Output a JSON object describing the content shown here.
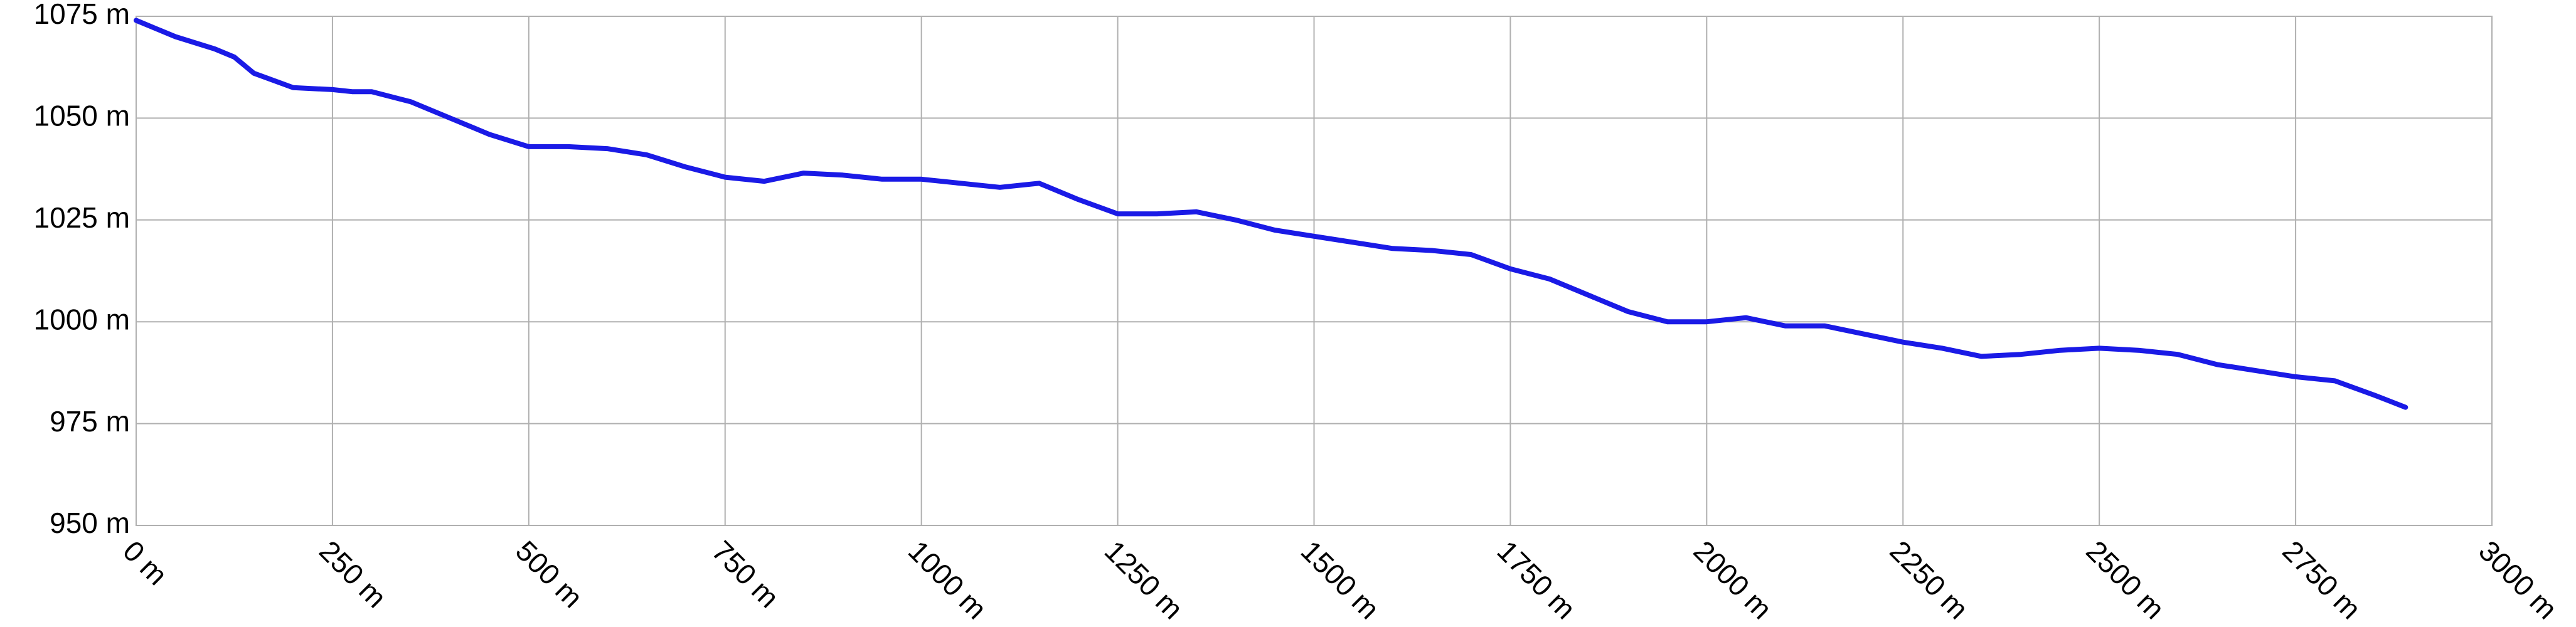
{
  "chart_data": {
    "type": "line",
    "x": [
      0,
      50,
      100,
      125,
      150,
      200,
      250,
      275,
      300,
      350,
      400,
      450,
      500,
      550,
      600,
      650,
      700,
      750,
      800,
      850,
      900,
      950,
      1000,
      1050,
      1100,
      1150,
      1200,
      1250,
      1300,
      1350,
      1400,
      1450,
      1500,
      1550,
      1600,
      1650,
      1700,
      1750,
      1800,
      1850,
      1900,
      1950,
      2000,
      2050,
      2100,
      2150,
      2200,
      2250,
      2300,
      2350,
      2400,
      2450,
      2500,
      2550,
      2600,
      2650,
      2700,
      2750,
      2800,
      2850,
      2890
    ],
    "values": [
      1074,
      1070,
      1067,
      1065,
      1061,
      1057.5,
      1057,
      1056.5,
      1056.5,
      1054,
      1050,
      1046,
      1043,
      1043,
      1042.5,
      1041,
      1038,
      1035.5,
      1034.5,
      1036.5,
      1036,
      1035,
      1035,
      1034,
      1033,
      1034,
      1030,
      1026.5,
      1026.5,
      1027,
      1025,
      1022.5,
      1021,
      1019.5,
      1018,
      1017.5,
      1016.5,
      1013,
      1010.5,
      1006.5,
      1002.5,
      1000,
      1000,
      1001,
      999,
      999,
      997,
      995,
      993.5,
      991.5,
      992,
      993,
      993.5,
      993,
      992,
      989.5,
      988,
      986.5,
      985.5,
      982,
      979
    ],
    "color": "#1a1ae6",
    "xlim": [
      0,
      3000
    ],
    "xticks": [
      {
        "value": 0,
        "label": "0 m"
      },
      {
        "value": 250,
        "label": "250 m"
      },
      {
        "value": 500,
        "label": "500 m"
      },
      {
        "value": 750,
        "label": "750 m"
      },
      {
        "value": 1000,
        "label": "1000 m"
      },
      {
        "value": 1250,
        "label": "1250 m"
      },
      {
        "value": 1500,
        "label": "1500 m"
      },
      {
        "value": 1750,
        "label": "1750 m"
      },
      {
        "value": 2000,
        "label": "2000 m"
      },
      {
        "value": 2250,
        "label": "2250 m"
      },
      {
        "value": 2500,
        "label": "2500 m"
      },
      {
        "value": 2750,
        "label": "2750 m"
      },
      {
        "value": 3000,
        "label": "3000 m"
      }
    ],
    "ylim": [
      950,
      1075
    ],
    "yticks": [
      {
        "value": 950,
        "label": "950 m"
      },
      {
        "value": 975,
        "label": "975 m"
      },
      {
        "value": 1000,
        "label": "1000 m"
      },
      {
        "value": 1025,
        "label": "1025 m"
      },
      {
        "value": 1050,
        "label": "1050 m"
      },
      {
        "value": 1075,
        "label": "1075 m"
      }
    ],
    "grid": true
  }
}
